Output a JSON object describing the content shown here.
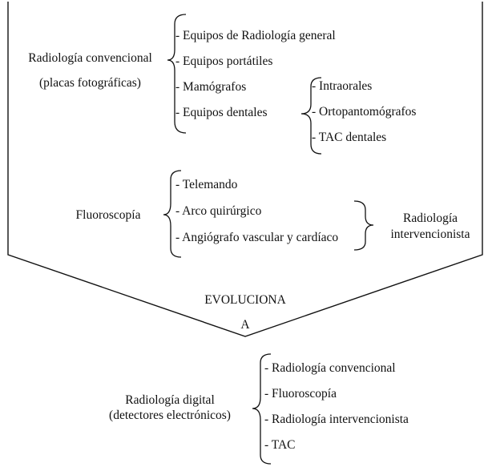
{
  "colors": {
    "ink": "#111111",
    "background": "#ffffff"
  },
  "top": {
    "conventional": {
      "title": "Radiología convencional",
      "subtitle": "(placas fotográficas)",
      "items": [
        "- Equipos de Radiología general",
        "- Equipos portátiles",
        "- Mamógrafos",
        "- Equipos dentales"
      ],
      "dental_items": [
        "- Intraorales",
        "- Ortopantomógrafos",
        "- TAC dentales"
      ]
    },
    "fluoroscopy": {
      "title": "Fluoroscopía",
      "items": [
        "- Telemando",
        "- Arco quirúrgico",
        "- Angiógrafo vascular y cardíaco"
      ],
      "interventional_line1": "Radiología",
      "interventional_line2": "intervencionista"
    }
  },
  "evolution": {
    "label": "EVOLUCIONA",
    "to": "A"
  },
  "bottom": {
    "title_line1": "Radiología digital",
    "title_line2": "(detectores electrónicos)",
    "items": [
      "- Radiología convencional",
      "- Fluoroscopía",
      "- Radiología intervencionista",
      "- TAC"
    ]
  }
}
